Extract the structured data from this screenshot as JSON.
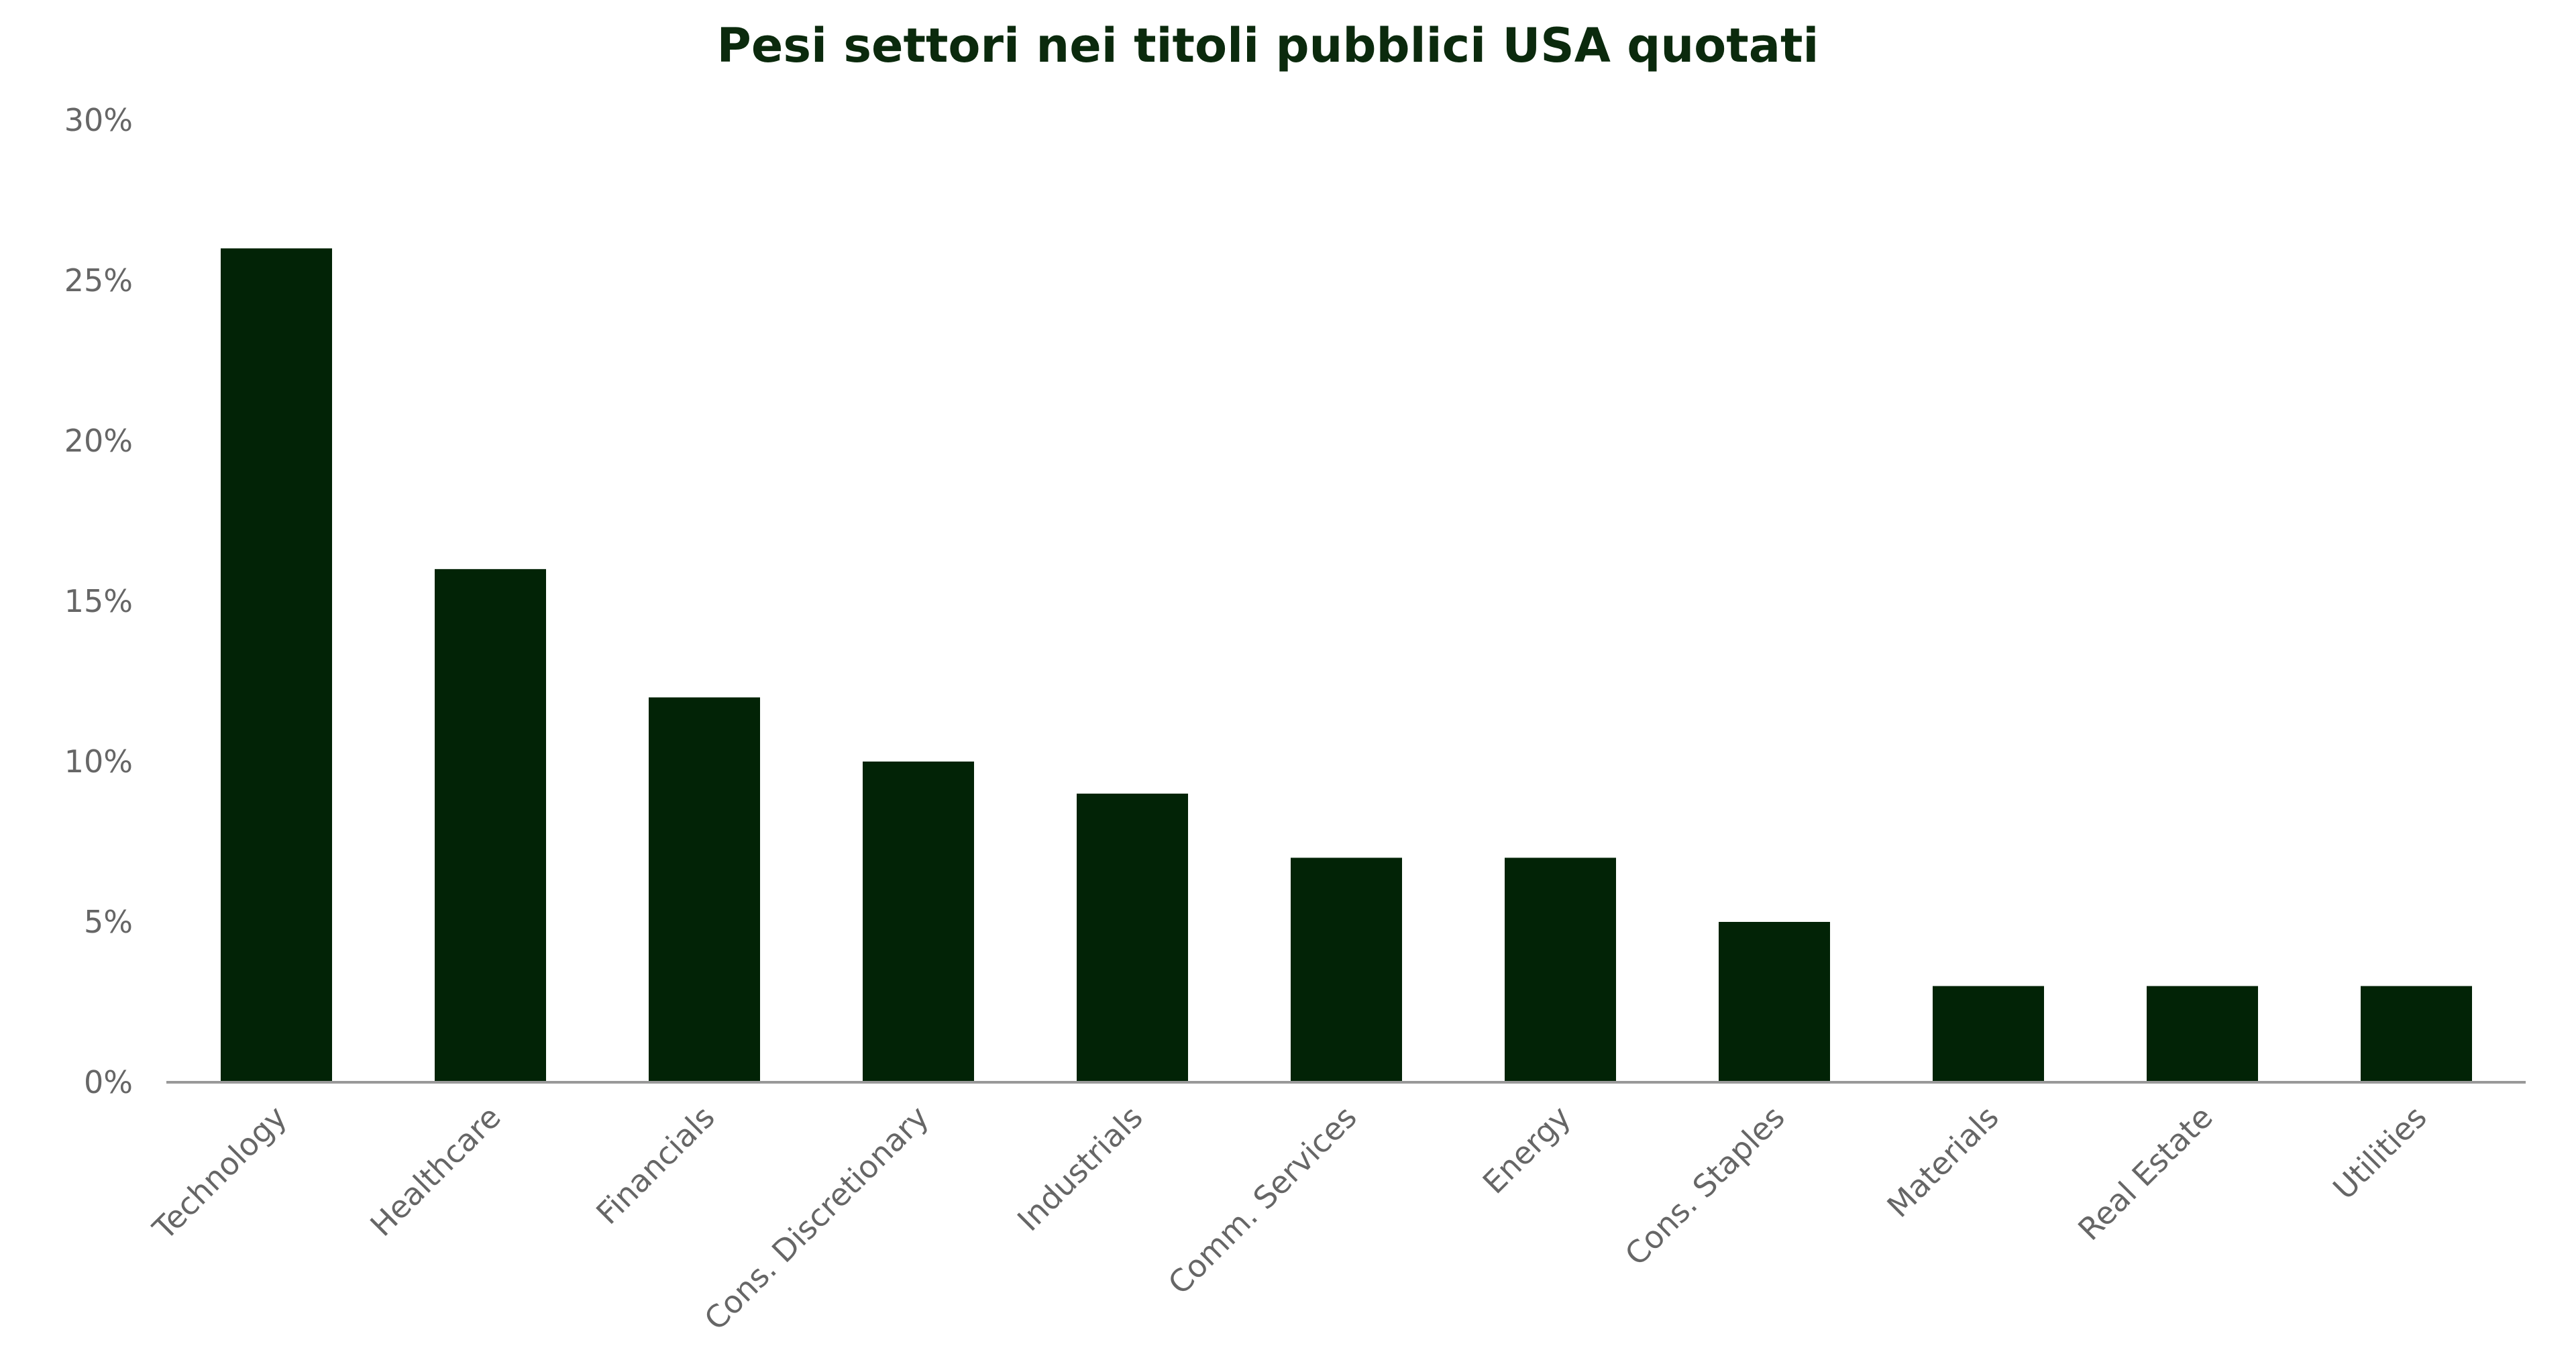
{
  "chart_data": {
    "type": "bar",
    "title": "Pesi settori nei titoli pubblici USA quotati",
    "xlabel": "",
    "ylabel": "",
    "categories": [
      "Technology",
      "Healthcare",
      "Financials",
      "Cons. Discretionary",
      "Industrials",
      "Comm. Services",
      "Energy",
      "Cons. Staples",
      "Materials",
      "Real Estate",
      "Utilities"
    ],
    "values": [
      26,
      16,
      12,
      10,
      9,
      7,
      7,
      5,
      3,
      3,
      3
    ],
    "unit": "%",
    "ylim": [
      0,
      30
    ],
    "yticks": [
      0,
      5,
      10,
      15,
      20,
      25,
      30
    ],
    "ytick_labels": [
      "0%",
      "5%",
      "10%",
      "15%",
      "20%",
      "25%",
      "30%"
    ],
    "grid": false,
    "legend": "none",
    "colors": {
      "bar": "#022306",
      "title": "#0b2a0d",
      "axis": "#999999",
      "tick_text": "#666666"
    }
  }
}
